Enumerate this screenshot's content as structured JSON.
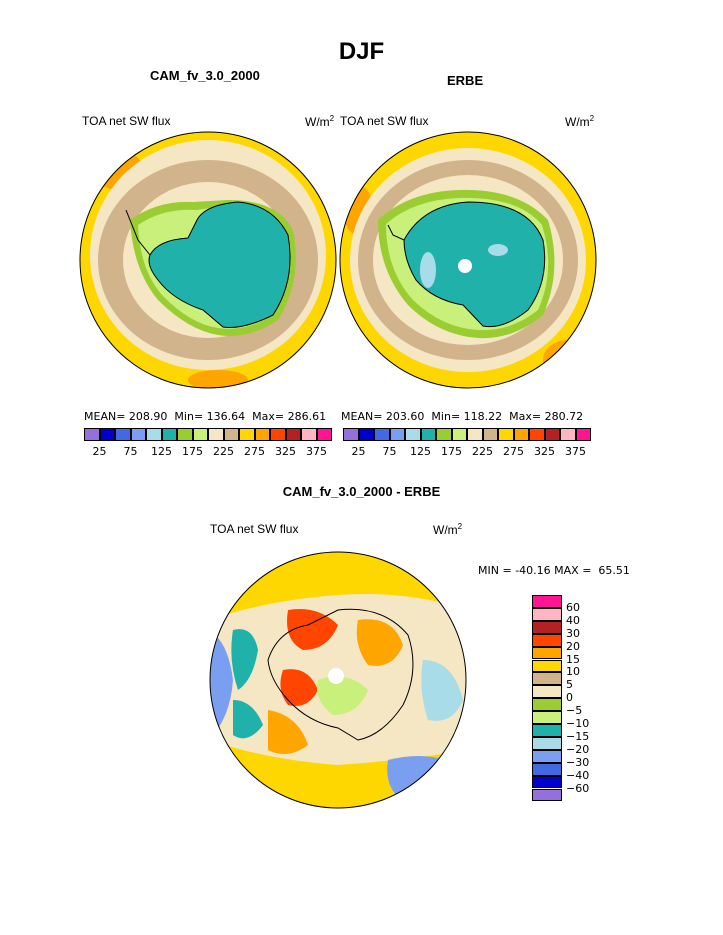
{
  "title": "DJF",
  "panels": [
    {
      "name": "CAM_fv_3.0_2000",
      "variable": "TOA net SW flux",
      "units_base": "W/m",
      "units_exp": "2",
      "stats": {
        "mean_label": "MEAN=",
        "mean": "208.90",
        "min_label": "Min=",
        "min": "136.64",
        "max_label": "Max=",
        "max": "286.61"
      }
    },
    {
      "name": "ERBE",
      "variable": "TOA net SW flux",
      "units_base": "W/m",
      "units_exp": "2",
      "stats": {
        "mean_label": "MEAN=",
        "mean": "203.60",
        "min_label": "Min=",
        "min": "118.22",
        "max_label": "Max=",
        "max": "280.72"
      }
    }
  ],
  "field_colorbar": {
    "colors": [
      "#9370db",
      "#0000cd",
      "#4169e1",
      "#7b9ff0",
      "#a8dce8",
      "#20b2aa",
      "#9acd32",
      "#c8f07a",
      "#f5e6c4",
      "#d2b48c",
      "#ffd700",
      "#ffa500",
      "#ff4500",
      "#b22222",
      "#ffb6c1",
      "#ff1493"
    ],
    "tick_labels": [
      "25",
      "75",
      "125",
      "175",
      "225",
      "275",
      "325",
      "375"
    ]
  },
  "difference": {
    "title": "CAM_fv_3.0_2000 - ERBE",
    "variable": "TOA net SW flux",
    "units_base": "W/m",
    "units_exp": "2",
    "min_label": "MIN =",
    "min": "-40.16",
    "max_label": "MAX =",
    "max": "65.51",
    "colors": [
      "#ff1493",
      "#ffb6c1",
      "#b22222",
      "#ff4500",
      "#ffa500",
      "#ffd700",
      "#d2b48c",
      "#f5e6c4",
      "#9acd32",
      "#c8f07a",
      "#20b2aa",
      "#a8dce8",
      "#7b9ff0",
      "#4169e1",
      "#0000cd",
      "#9370db"
    ],
    "tick_labels": [
      "60",
      "40",
      "30",
      "20",
      "15",
      "10",
      "5",
      "0",
      "−5",
      "−10",
      "−15",
      "−20",
      "−30",
      "−40",
      "−60"
    ]
  }
}
